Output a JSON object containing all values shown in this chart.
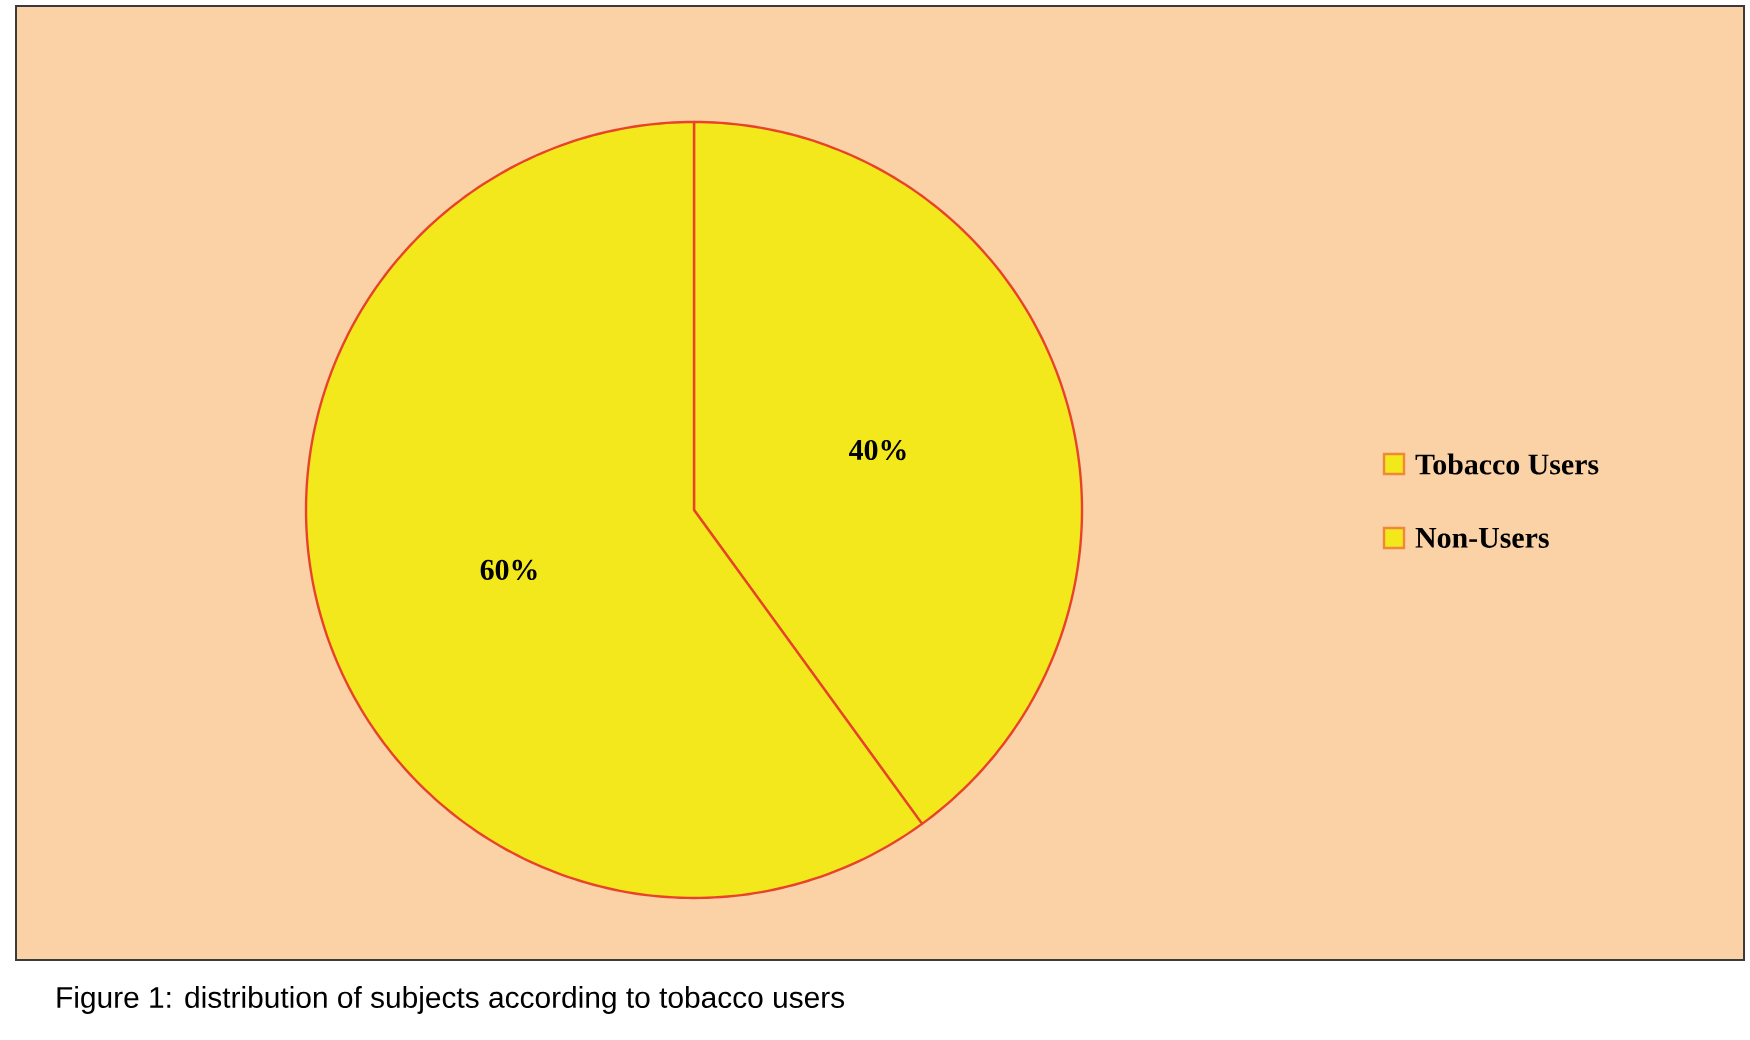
{
  "chart_data": {
    "type": "pie",
    "categories": [
      "Tobacco Users",
      "Non-Users"
    ],
    "values": [
      40,
      60
    ],
    "colors": [
      "#f2e81c",
      "#f2e81c"
    ],
    "value_labels": [
      "40%",
      "60%"
    ],
    "legend": "right",
    "annotations": [
      "Figure 1: distribution of subjects according to tobacco users"
    ]
  }
}
